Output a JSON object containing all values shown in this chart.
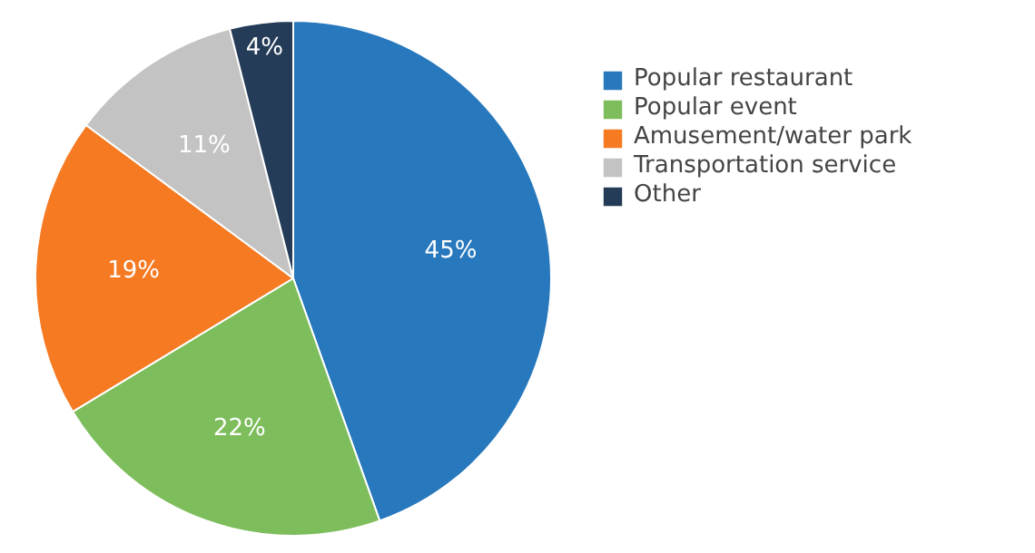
{
  "chart_data": {
    "type": "pie",
    "categories": [
      "Popular restaurant",
      "Popular event",
      "Amusement/water park",
      "Transportation service",
      "Other"
    ],
    "values": [
      45,
      22,
      19,
      11,
      4
    ],
    "colors": [
      "#2878bd",
      "#7dbd5b",
      "#f57a22",
      "#c3c3c3",
      "#243c57"
    ],
    "value_labels": [
      "45%",
      "22%",
      "19%",
      "11%",
      "4%"
    ],
    "legend": "right"
  }
}
